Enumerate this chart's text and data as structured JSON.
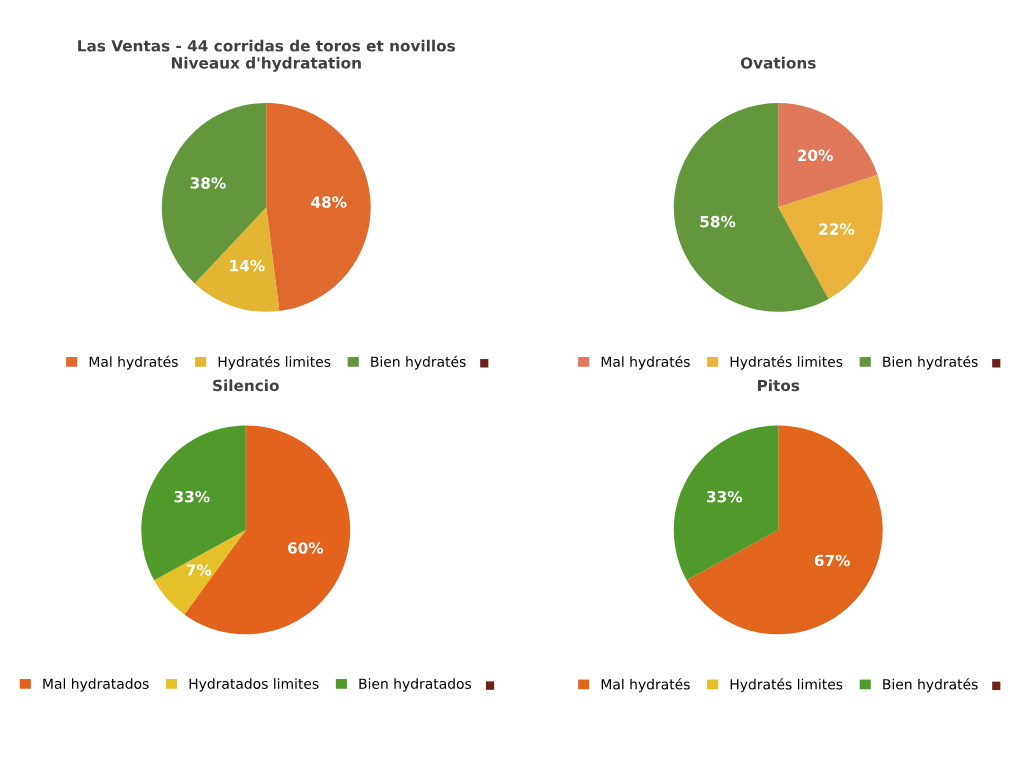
{
  "chart_data": [
    {
      "type": "pie",
      "title": "Las Ventas - 44 corridas de toros et novillos\nNiveaux d'hydratation",
      "categories": [
        "Mal hydratés",
        "Hydratés limites",
        "Bien hydratés"
      ],
      "values": [
        48,
        14,
        38
      ],
      "value_labels": [
        "48%",
        "14%",
        "38%"
      ],
      "colors": [
        "#e0692e",
        "#e4b532",
        "#64973c"
      ],
      "legend": "bottom"
    },
    {
      "type": "pie",
      "title": "Ovations",
      "categories": [
        "Mal hydratés",
        "Hydratés limites",
        "Bien hydratés"
      ],
      "values": [
        20,
        22,
        58
      ],
      "value_labels": [
        "20%",
        "22%",
        "58%"
      ],
      "colors": [
        "#e0785a",
        "#eab23a",
        "#64973c"
      ],
      "legend": "bottom"
    },
    {
      "type": "pie",
      "title": "Silencio",
      "categories": [
        "Mal hydratados",
        "Hydratados limites",
        "Bien hydratados"
      ],
      "values": [
        60,
        7,
        33
      ],
      "value_labels": [
        "60%",
        "7%",
        "33%"
      ],
      "colors": [
        "#e2621e",
        "#e6c028",
        "#4f9a2a"
      ],
      "legend": "bottom"
    },
    {
      "type": "pie",
      "title": "Pitos",
      "categories": [
        "Mal hydratés",
        "Hydratés limites",
        "Bien hydratés"
      ],
      "values": [
        67,
        0,
        33
      ],
      "value_labels": [
        "67%",
        null,
        "33%"
      ],
      "colors": [
        "#e2651e",
        "#e6c028",
        "#4f9a2a"
      ],
      "legend": "bottom"
    }
  ]
}
